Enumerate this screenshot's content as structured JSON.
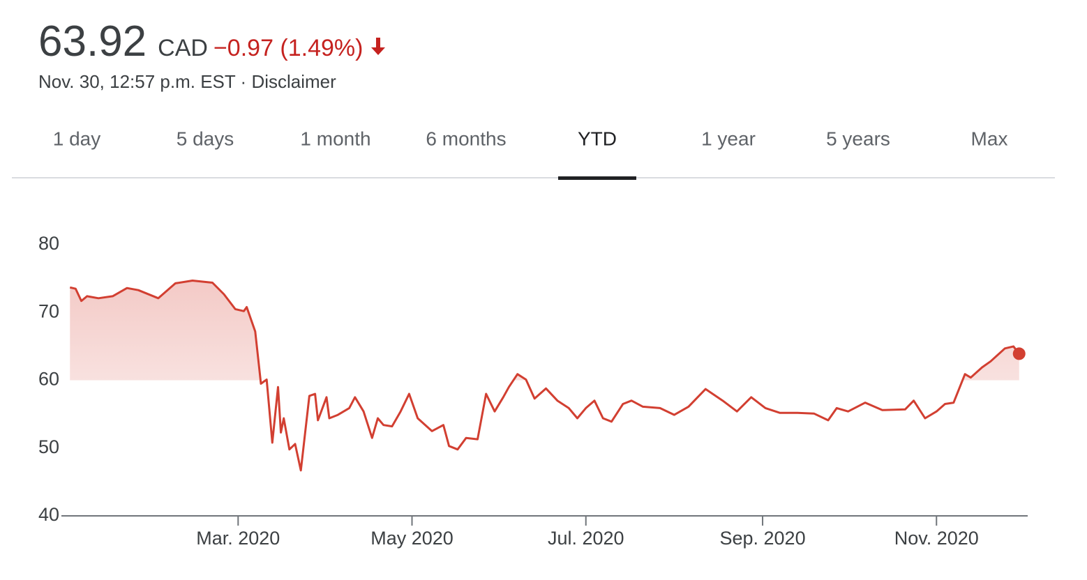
{
  "header": {
    "price": "63.92",
    "currency": "CAD",
    "change": "−0.97 (1.49%)",
    "timestamp": "Nov. 30, 12:57 p.m. EST",
    "separator": "·",
    "disclaimer": "Disclaimer"
  },
  "tabs": {
    "items": [
      "1 day",
      "5 days",
      "1 month",
      "6 months",
      "YTD",
      "1 year",
      "5 years",
      "Max"
    ],
    "selected": 4
  },
  "chart_data": {
    "type": "line",
    "ylim": [
      40,
      80
    ],
    "yticks": [
      40,
      50,
      60,
      70,
      80
    ],
    "xlim": [
      -2,
      337
    ],
    "xticks": [
      {
        "value": 60,
        "label": "Mar. 2020"
      },
      {
        "value": 121,
        "label": "May 2020"
      },
      {
        "value": 182,
        "label": "Jul. 2020"
      },
      {
        "value": 244,
        "label": "Sep. 2020"
      },
      {
        "value": 305,
        "label": "Nov. 2020"
      }
    ],
    "grid": false,
    "area_baseline": 60,
    "series": [
      {
        "color": "#d23f31",
        "x": [
          1,
          3,
          5,
          7,
          11,
          16,
          21,
          25,
          32,
          38,
          44,
          51,
          55,
          59,
          62,
          63,
          66,
          68,
          70,
          72,
          74,
          75,
          76,
          78,
          80,
          82,
          85,
          87,
          88,
          91,
          92,
          95,
          99,
          101,
          104,
          107,
          109,
          111,
          114,
          117,
          120,
          123,
          128,
          132,
          134,
          137,
          140,
          144,
          147,
          150,
          153,
          155,
          158,
          161,
          164,
          168,
          172,
          176,
          179,
          182,
          185,
          188,
          191,
          195,
          198,
          202,
          208,
          213,
          218,
          224,
          230,
          235,
          240,
          245,
          250,
          256,
          262,
          267,
          270,
          274,
          280,
          286,
          294,
          297,
          301,
          305,
          308,
          311,
          315,
          317,
          321,
          324,
          329,
          332,
          334
        ],
        "values": [
          73.7,
          73.5,
          71.7,
          72.4,
          72.1,
          72.4,
          73.6,
          73.3,
          72.1,
          74.3,
          74.7,
          74.4,
          72.7,
          70.5,
          70.2,
          70.8,
          67.2,
          59.5,
          60.1,
          50.8,
          59.0,
          52.3,
          54.4,
          49.8,
          50.6,
          46.7,
          57.7,
          58.0,
          54.1,
          57.5,
          54.4,
          54.9,
          55.9,
          57.5,
          55.4,
          51.5,
          54.4,
          53.4,
          53.2,
          55.4,
          58.0,
          54.4,
          52.5,
          53.4,
          50.3,
          49.8,
          51.5,
          51.3,
          58.0,
          55.4,
          57.5,
          59.0,
          60.9,
          60.1,
          57.3,
          58.8,
          57.0,
          55.9,
          54.4,
          55.9,
          57.0,
          54.4,
          53.9,
          56.5,
          57.0,
          56.1,
          55.9,
          54.9,
          56.1,
          58.7,
          57.0,
          55.4,
          57.5,
          55.9,
          55.2,
          55.2,
          55.1,
          54.1,
          55.9,
          55.4,
          56.7,
          55.6,
          55.7,
          57.0,
          54.4,
          55.4,
          56.5,
          56.7,
          60.9,
          60.4,
          61.9,
          62.8,
          64.7,
          65.0,
          63.92
        ]
      }
    ]
  }
}
